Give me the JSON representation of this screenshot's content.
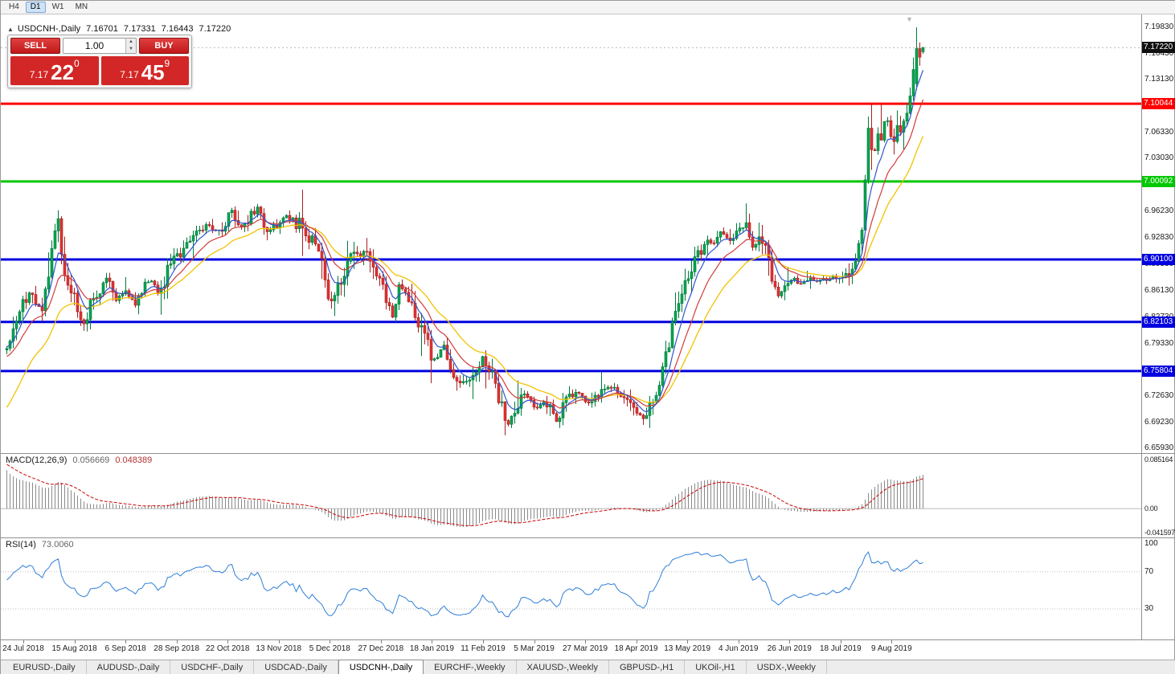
{
  "colors": {
    "up": "#00a551",
    "up_stroke": "#00793c",
    "down": "#e03232",
    "down_stroke": "#a81f1f",
    "level_blue": "#0000e0",
    "level_red": "#ff0000",
    "level_green": "#00c800",
    "macd_hist": "#8a8a8a",
    "macd_signal": "#cc0000",
    "rsi_line": "#2f7ed8",
    "trade_red": "#d32626",
    "current_price_tag": "#101010"
  },
  "icons": {
    "collapse": "▲",
    "spin_up": "▲",
    "spin_down": "▼",
    "shift_marker": "▼"
  },
  "toolbar": {
    "timeframes": [
      {
        "label": "H4",
        "active": false
      },
      {
        "label": "D1",
        "active": true
      },
      {
        "label": "W1",
        "active": false
      },
      {
        "label": "MN",
        "active": false
      }
    ]
  },
  "chart_header": {
    "symbol": "USDCNH-,Daily",
    "open": "7.16701",
    "high": "7.17331",
    "low": "7.16443",
    "close": "7.17220"
  },
  "trade_panel": {
    "sell_label": "SELL",
    "buy_label": "BUY",
    "volume": "1.00",
    "sell_price": {
      "prefix": "7.17",
      "pips": "22",
      "sup": "0"
    },
    "buy_price": {
      "prefix": "7.17",
      "pips": "45",
      "sup": "9"
    }
  },
  "price_scale": {
    "boxes": [
      {
        "text": "7.17220",
        "price": 7.1722,
        "bg": "#101010"
      },
      {
        "text": "7.10044",
        "price": 7.10044,
        "bg": "#ff0000"
      },
      {
        "text": "7.00092",
        "price": 7.00092,
        "bg": "#00c800"
      },
      {
        "text": "6.90100",
        "price": 6.901,
        "bg": "#0000e0"
      },
      {
        "text": "6.82103",
        "price": 6.82103,
        "bg": "#0000e0"
      },
      {
        "text": "6.75804",
        "price": 6.75804,
        "bg": "#0000e0"
      }
    ]
  },
  "macd_panel": {
    "label": "MACD(12,26,9)",
    "main_value": "0.056669",
    "signal_value": "0.048389",
    "axis": [
      {
        "text": "0.085164",
        "value": 0.085164
      },
      {
        "text": "0.00",
        "value": 0
      },
      {
        "text": "-0.041597",
        "value": -0.041597
      }
    ]
  },
  "rsi_panel": {
    "label": "RSI(14)",
    "value": "73.0060",
    "axis": [
      {
        "text": "100",
        "value": 100
      },
      {
        "text": "70",
        "value": 70
      },
      {
        "text": "30",
        "value": 30
      }
    ]
  },
  "time_axis": {
    "dates": [
      "24 Jul 2018",
      "15 Aug 2018",
      "6 Sep 2018",
      "28 Sep 2018",
      "22 Oct 2018",
      "13 Nov 2018",
      "5 Dec 2018",
      "27 Dec 2018",
      "18 Jan 2019",
      "11 Feb 2019",
      "5 Mar 2019",
      "27 Mar 2019",
      "18 Apr 2019",
      "13 May 2019",
      "4 Jun 2019",
      "26 Jun 2019",
      "18 Jul 2019",
      "9 Aug 2019"
    ]
  },
  "tabs": [
    {
      "label": "EURUSD-,Daily",
      "active": false
    },
    {
      "label": "AUDUSD-,Daily",
      "active": false
    },
    {
      "label": "USDCHF-,Daily",
      "active": false
    },
    {
      "label": "USDCAD-,Daily",
      "active": false
    },
    {
      "label": "USDCNH-,Daily",
      "active": true
    },
    {
      "label": "EURCHF-,Weekly",
      "active": false
    },
    {
      "label": "XAUUSD-,Weekly",
      "active": false
    },
    {
      "label": "GBPUSD-,H1",
      "active": false
    },
    {
      "label": "UKOil-,H1",
      "active": false
    },
    {
      "label": "USDX-,Weekly",
      "active": false
    }
  ],
  "chart_data": {
    "type": "candlestick",
    "symbol": "USDCNH",
    "timeframe": "Daily",
    "title": "USDCNH-,Daily",
    "last_bar": {
      "open": 7.16701,
      "high": 7.17331,
      "low": 7.16443,
      "close": 7.1722
    },
    "bid": 7.1722,
    "ask": 7.1745,
    "price_axis_ticks": [
      7.1983,
      7.1643,
      7.1313,
      7.0973,
      7.0633,
      7.0303,
      6.9963,
      6.9623,
      6.9283,
      6.8953,
      6.8613,
      6.8273,
      6.7933,
      6.7593,
      6.7263,
      6.6923,
      6.6593
    ],
    "horizontal_levels": [
      {
        "price": 7.10044,
        "color": "red"
      },
      {
        "price": 7.00092,
        "color": "green"
      },
      {
        "price": 6.901,
        "color": "blue"
      },
      {
        "price": 6.82103,
        "color": "blue"
      },
      {
        "price": 6.75804,
        "color": "blue"
      }
    ],
    "x_axis_dates": [
      "24 Jul 2018",
      "15 Aug 2018",
      "6 Sep 2018",
      "28 Sep 2018",
      "22 Oct 2018",
      "13 Nov 2018",
      "5 Dec 2018",
      "27 Dec 2018",
      "18 Jan 2019",
      "11 Feb 2019",
      "5 Mar 2019",
      "27 Mar 2019",
      "18 Apr 2019",
      "13 May 2019",
      "4 Jun 2019",
      "26 Jun 2019",
      "18 Jul 2019",
      "9 Aug 2019"
    ],
    "candle_count": 286,
    "trend_anchors": [
      [
        0.0,
        6.785
      ],
      [
        0.012,
        6.83
      ],
      [
        0.025,
        6.86
      ],
      [
        0.039,
        6.832
      ],
      [
        0.05,
        6.925
      ],
      [
        0.056,
        6.948
      ],
      [
        0.061,
        6.892
      ],
      [
        0.074,
        6.852
      ],
      [
        0.082,
        6.812
      ],
      [
        0.096,
        6.856
      ],
      [
        0.109,
        6.876
      ],
      [
        0.118,
        6.85
      ],
      [
        0.131,
        6.862
      ],
      [
        0.139,
        6.842
      ],
      [
        0.153,
        6.876
      ],
      [
        0.166,
        6.858
      ],
      [
        0.179,
        6.894
      ],
      [
        0.192,
        6.916
      ],
      [
        0.205,
        6.928
      ],
      [
        0.218,
        6.946
      ],
      [
        0.232,
        6.936
      ],
      [
        0.245,
        6.964
      ],
      [
        0.254,
        6.94
      ],
      [
        0.267,
        6.956
      ],
      [
        0.275,
        6.966
      ],
      [
        0.284,
        6.94
      ],
      [
        0.297,
        6.948
      ],
      [
        0.306,
        6.956
      ],
      [
        0.319,
        6.946
      ],
      [
        0.328,
        6.92
      ],
      [
        0.337,
        6.926
      ],
      [
        0.346,
        6.884
      ],
      [
        0.354,
        6.844
      ],
      [
        0.363,
        6.866
      ],
      [
        0.376,
        6.914
      ],
      [
        0.385,
        6.904
      ],
      [
        0.394,
        6.914
      ],
      [
        0.403,
        6.886
      ],
      [
        0.411,
        6.858
      ],
      [
        0.42,
        6.828
      ],
      [
        0.429,
        6.864
      ],
      [
        0.438,
        6.856
      ],
      [
        0.446,
        6.83
      ],
      [
        0.46,
        6.788
      ],
      [
        0.468,
        6.768
      ],
      [
        0.477,
        6.796
      ],
      [
        0.486,
        6.76
      ],
      [
        0.499,
        6.742
      ],
      [
        0.508,
        6.756
      ],
      [
        0.521,
        6.776
      ],
      [
        0.53,
        6.748
      ],
      [
        0.539,
        6.718
      ],
      [
        0.547,
        6.692
      ],
      [
        0.556,
        6.712
      ],
      [
        0.565,
        6.728
      ],
      [
        0.578,
        6.71
      ],
      [
        0.587,
        6.72
      ],
      [
        0.6,
        6.694
      ],
      [
        0.609,
        6.718
      ],
      [
        0.622,
        6.73
      ],
      [
        0.635,
        6.718
      ],
      [
        0.644,
        6.728
      ],
      [
        0.657,
        6.738
      ],
      [
        0.67,
        6.728
      ],
      [
        0.683,
        6.708
      ],
      [
        0.692,
        6.698
      ],
      [
        0.701,
        6.716
      ],
      [
        0.71,
        6.738
      ],
      [
        0.719,
        6.776
      ],
      [
        0.727,
        6.818
      ],
      [
        0.736,
        6.856
      ],
      [
        0.745,
        6.88
      ],
      [
        0.754,
        6.906
      ],
      [
        0.762,
        6.926
      ],
      [
        0.771,
        6.916
      ],
      [
        0.78,
        6.936
      ],
      [
        0.789,
        6.926
      ],
      [
        0.797,
        6.938
      ],
      [
        0.806,
        6.946
      ],
      [
        0.815,
        6.92
      ],
      [
        0.824,
        6.926
      ],
      [
        0.832,
        6.896
      ],
      [
        0.841,
        6.856
      ],
      [
        0.85,
        6.866
      ],
      [
        0.859,
        6.876
      ],
      [
        0.867,
        6.868
      ],
      [
        0.876,
        6.876
      ],
      [
        0.885,
        6.872
      ],
      [
        0.894,
        6.876
      ],
      [
        0.907,
        6.878
      ],
      [
        0.915,
        6.882
      ],
      [
        0.924,
        6.89
      ],
      [
        0.933,
        6.926
      ],
      [
        0.937,
        6.998
      ],
      [
        0.941,
        7.088
      ],
      [
        0.945,
        7.022
      ],
      [
        0.95,
        7.058
      ],
      [
        0.955,
        7.046
      ],
      [
        0.959,
        7.086
      ],
      [
        0.964,
        7.066
      ],
      [
        0.969,
        7.05
      ],
      [
        0.973,
        7.076
      ],
      [
        0.978,
        7.066
      ],
      [
        0.982,
        7.09
      ],
      [
        0.987,
        7.126
      ],
      [
        0.991,
        7.146
      ],
      [
        0.995,
        7.164
      ],
      [
        1.0,
        7.172
      ]
    ],
    "indicators": {
      "moving_averages": [
        {
          "name": "fast",
          "color": "#3355cc",
          "period": 6
        },
        {
          "name": "mid",
          "color": "#d23b3b",
          "period": 13
        },
        {
          "name": "slow",
          "color": "#f2c200",
          "period": 24
        }
      ],
      "macd": {
        "fast": 12,
        "slow": 26,
        "signal": 9,
        "current_main": 0.056669,
        "current_signal": 0.048389,
        "axis_max": 0.085164,
        "axis_min": -0.041597
      },
      "rsi": {
        "period": 14,
        "current": 73.006,
        "levels": [
          70,
          30
        ]
      }
    }
  }
}
